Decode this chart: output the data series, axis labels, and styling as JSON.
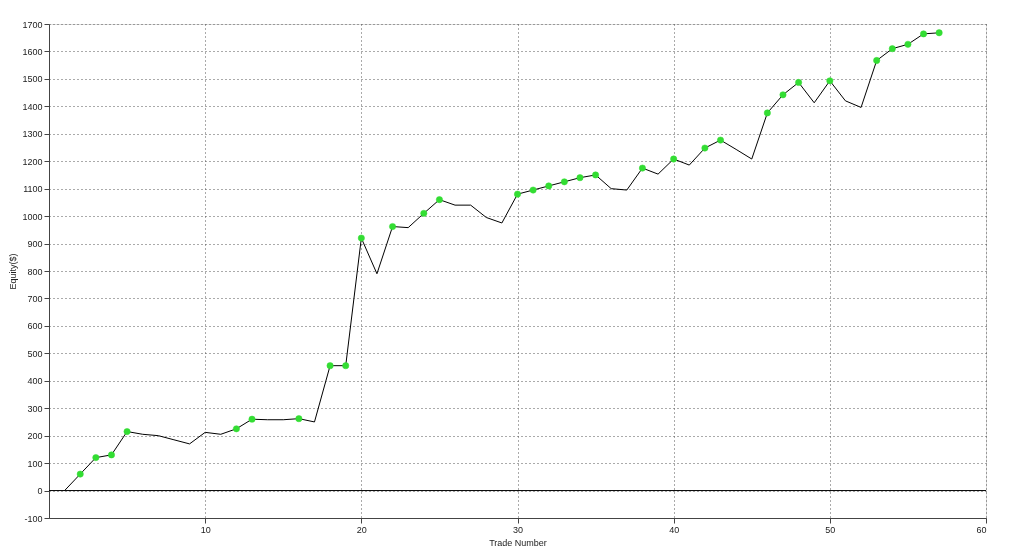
{
  "chart_data": {
    "type": "line",
    "xlabel": "Trade Number",
    "ylabel": "Equity($)",
    "series": [
      {
        "type": "line",
        "color": "#000000",
        "marker": "none",
        "x": [
          1,
          2,
          3,
          4,
          5,
          6,
          7,
          8,
          9,
          10,
          11,
          12,
          13,
          14,
          15,
          16,
          17,
          18,
          19,
          20,
          21,
          22,
          23,
          24,
          25,
          26,
          27,
          28,
          29,
          30,
          31,
          32,
          33,
          34,
          35,
          36,
          37,
          38,
          39,
          40,
          41,
          42,
          43,
          44,
          45,
          46,
          47,
          48,
          49,
          50,
          51,
          52,
          53,
          54,
          55,
          56,
          57
        ],
        "values": [
          0,
          60,
          120,
          130,
          215,
          205,
          200,
          185,
          170,
          212,
          205,
          225,
          260,
          258,
          258,
          262,
          250,
          455,
          455,
          920,
          790,
          962,
          958,
          1010,
          1060,
          1040,
          1040,
          995,
          975,
          1080,
          1095,
          1110,
          1125,
          1140,
          1150,
          1100,
          1095,
          1175,
          1153,
          1208,
          1186,
          1248,
          1277,
          1243,
          1208,
          1376,
          1442,
          1487,
          1413,
          1493,
          1420,
          1396,
          1567,
          1610,
          1626,
          1664,
          1668
        ]
      },
      {
        "type": "scatter",
        "color": "#33dd33",
        "marker": "circle",
        "x": [
          2,
          3,
          4,
          5,
          12,
          13,
          16,
          18,
          19,
          20,
          22,
          24,
          25,
          30,
          31,
          32,
          33,
          34,
          35,
          38,
          40,
          42,
          43,
          46,
          47,
          48,
          50,
          53,
          54,
          55,
          56,
          57
        ],
        "values": [
          60,
          120,
          130,
          215,
          225,
          260,
          262,
          455,
          455,
          920,
          962,
          1010,
          1060,
          1080,
          1095,
          1110,
          1125,
          1140,
          1150,
          1175,
          1208,
          1248,
          1277,
          1376,
          1442,
          1487,
          1493,
          1567,
          1610,
          1626,
          1664,
          1668
        ]
      }
    ],
    "xlim": [
      0,
      60
    ],
    "xticks": [
      10,
      20,
      30,
      40,
      50,
      60
    ],
    "ylim": [
      -100,
      1700
    ],
    "yticks": [
      -100,
      0,
      100,
      200,
      300,
      400,
      500,
      600,
      700,
      800,
      900,
      1000,
      1100,
      1200,
      1300,
      1400,
      1500,
      1600,
      1700
    ],
    "ref_lines": [
      {
        "axis": "y",
        "value": 0,
        "color": "#000000"
      }
    ],
    "grid": true,
    "legend": false
  }
}
